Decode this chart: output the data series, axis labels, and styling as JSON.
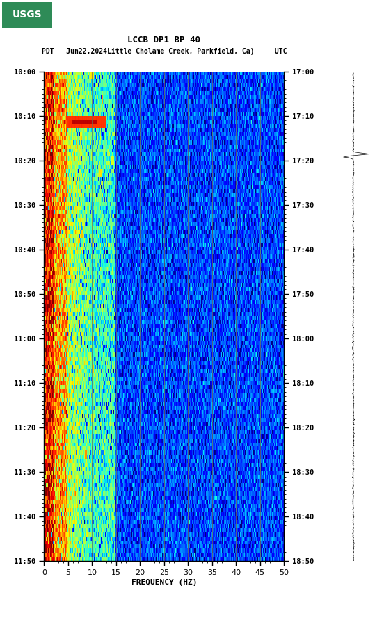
{
  "title_line1": "LCCB DP1 BP 40",
  "title_line2_part1": "PDT   Jun22,2024",
  "title_line2_part2": "Little Cholame Creek, Parkfield, Ca)",
  "title_line2_part3": "     UTC",
  "xlabel": "FREQUENCY (HZ)",
  "freq_min": 0,
  "freq_max": 50,
  "time_ticks_pdt": [
    "10:00",
    "10:10",
    "10:20",
    "10:30",
    "10:40",
    "10:50",
    "11:00",
    "11:10",
    "11:20",
    "11:30",
    "11:40",
    "11:50"
  ],
  "time_ticks_utc": [
    "17:00",
    "17:10",
    "17:20",
    "17:30",
    "17:40",
    "17:50",
    "18:00",
    "18:10",
    "18:20",
    "18:30",
    "18:40",
    "18:50"
  ],
  "n_time": 120,
  "n_freq": 500,
  "colormap": "jet",
  "vertical_lines_freq": [
    10,
    15,
    20,
    25,
    30,
    35,
    40,
    45
  ],
  "vertical_line_color": "#707050",
  "logo_color": "#006400"
}
